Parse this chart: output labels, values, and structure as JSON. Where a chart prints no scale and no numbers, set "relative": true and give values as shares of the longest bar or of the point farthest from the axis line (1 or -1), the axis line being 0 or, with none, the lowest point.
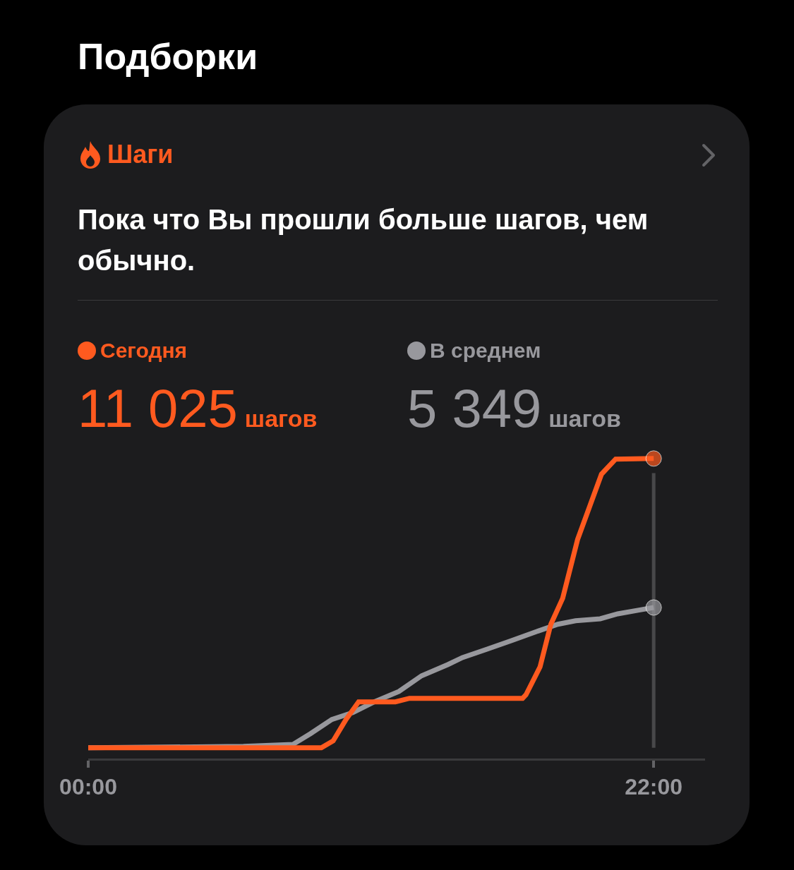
{
  "chart_data": {
    "type": "line",
    "title": "Шаги",
    "subtitle": "Пока что Вы прошли больше шагов, чем обычно.",
    "relative": true,
    "annotations": [
      "Подборки",
      "11 025",
      "шагов",
      "5 349",
      "шагов"
    ],
    "series": [
      {
        "name": "Сегодня",
        "color": "#ff5a1f",
        "x": [
          0,
          9.07,
          9.53,
          10.03,
          10.52,
          11.95,
          12.5,
          16.9,
          17.03,
          17.58,
          18.0,
          18.46,
          19.04,
          19.97,
          20.52,
          22.0
        ],
        "values": [
          0,
          0,
          0.024,
          0.098,
          0.159,
          0.159,
          0.171,
          0.171,
          0.183,
          0.28,
          0.427,
          0.517,
          0.72,
          0.946,
          0.998,
          1
        ]
      },
      {
        "name": "В среднем",
        "color": "#98989d",
        "x": [
          0,
          6.04,
          7.97,
          8.65,
          9.48,
          10.3,
          11.13,
          12.09,
          12.97,
          14.0,
          14.56,
          15.52,
          16.48,
          17.45,
          18.27,
          18.96,
          19.92,
          20.6,
          21.43,
          22.0
        ],
        "values": [
          0,
          0.005,
          0.012,
          0.049,
          0.098,
          0.122,
          0.159,
          0.195,
          0.249,
          0.288,
          0.312,
          0.341,
          0.371,
          0.402,
          0.427,
          0.439,
          0.446,
          0.463,
          0.476,
          0.485
        ]
      }
    ],
    "xlim": [
      0,
      24
    ],
    "xticks": [
      {
        "value": 0,
        "label": "00:00"
      },
      {
        "value": 22,
        "label": "22:00"
      }
    ],
    "ref_lines": [
      {
        "axis": "x",
        "value": 22,
        "color": "#48484a"
      }
    ],
    "legend": "top",
    "grid": false,
    "tick_labels": "x"
  }
}
